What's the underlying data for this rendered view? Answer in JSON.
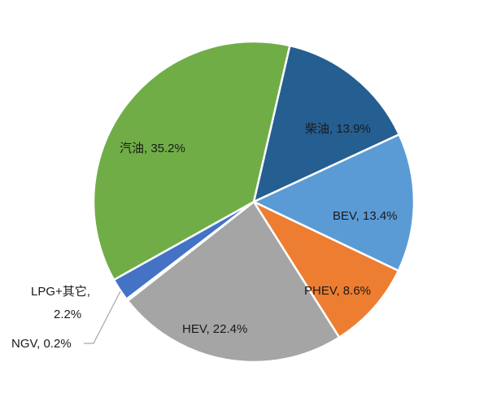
{
  "chart_data": {
    "type": "pie",
    "title": "",
    "slices": [
      {
        "name": "柴油",
        "value": 13.9,
        "label": "柴油, 13.9%",
        "color": "#255e91"
      },
      {
        "name": "BEV",
        "value": 13.4,
        "label": "BEV, 13.4%",
        "color": "#5b9bd5"
      },
      {
        "name": "PHEV",
        "value": 8.6,
        "label": "PHEV, 8.6%",
        "color": "#ed7d31"
      },
      {
        "name": "HEV",
        "value": 22.4,
        "label": "HEV, 22.4%",
        "color": "#a5a5a5"
      },
      {
        "name": "NGV",
        "value": 0.2,
        "label": "NGV, 0.2%",
        "color": "#ffc000"
      },
      {
        "name": "LPG+其它",
        "value": 2.2,
        "label_lines": [
          "LPG+其它,",
          "2.2%"
        ],
        "color": "#4472c4"
      },
      {
        "name": "汽油",
        "value": 35.2,
        "label": "汽油, 35.2%",
        "color": "#70ad47"
      }
    ],
    "start_angle_deg": 13,
    "direction": "clockwise",
    "legend": "none",
    "data_labels": "category name and percentage"
  }
}
